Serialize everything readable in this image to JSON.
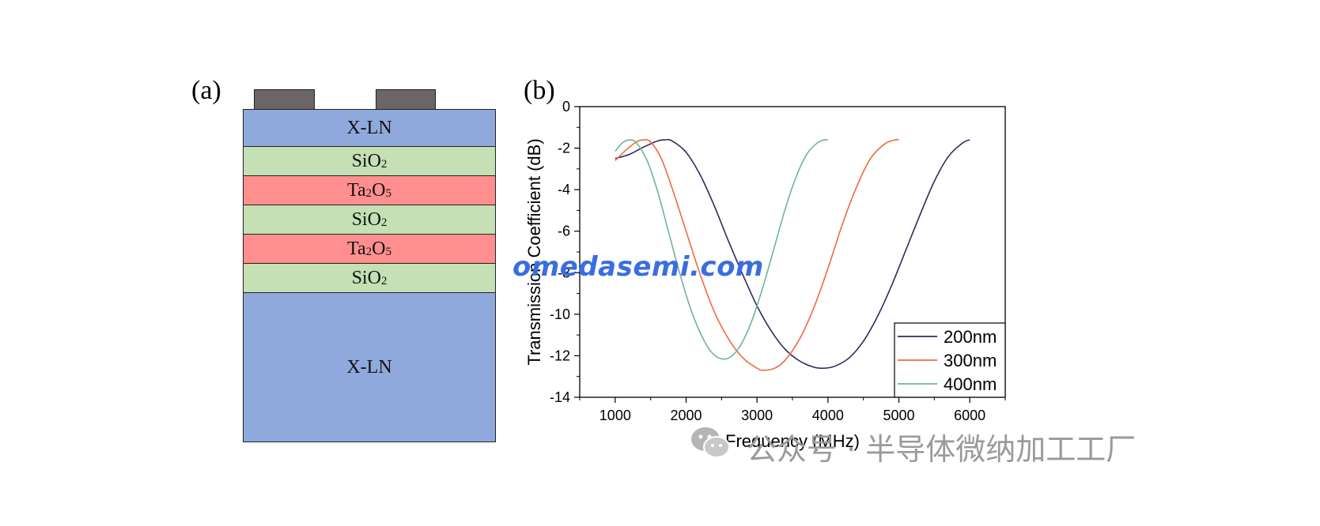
{
  "panel_a": {
    "label": "(a)",
    "layers": [
      {
        "name": "X-LN",
        "color": "#8fa9dc"
      },
      {
        "name": "SiO",
        "sub": "2",
        "color": "#c5e0b4"
      },
      {
        "name": "Ta",
        "sub": "2",
        "name2": "O",
        "sub2": "5",
        "color": "#ff8f8f"
      },
      {
        "name": "SiO",
        "sub": "2",
        "color": "#c5e0b4"
      },
      {
        "name": "Ta",
        "sub": "2",
        "name2": "O",
        "sub2": "5",
        "color": "#ff8f8f"
      },
      {
        "name": "SiO",
        "sub": "2",
        "color": "#c5e0b4"
      },
      {
        "name": "X-LN",
        "color": "#8fa9dc"
      }
    ]
  },
  "panel_b": {
    "label": "(b)"
  },
  "chart_data": {
    "type": "line",
    "xlabel": "Frequency (MHz)",
    "ylabel": "Transmission Coefficient (dB)",
    "xlim": [
      500,
      6500
    ],
    "ylim": [
      -14,
      0
    ],
    "xticks": [
      1000,
      2000,
      3000,
      4000,
      5000,
      6000
    ],
    "yticks": [
      0,
      -2,
      -4,
      -6,
      -8,
      -10,
      -12,
      -14
    ],
    "legend_position": "bottom-right",
    "series": [
      {
        "name": "200nm",
        "color": "#2c2c5c",
        "x": [
          1000,
          1200,
          1400,
          1600,
          1700,
          1800,
          2000,
          2200,
          2400,
          2600,
          2800,
          3000,
          3200,
          3400,
          3600,
          3800,
          3950,
          4100,
          4300,
          4500,
          4700,
          4900,
          5100,
          5300,
          5500,
          5700,
          5900,
          6000
        ],
        "y": [
          -2.5,
          -2.3,
          -1.95,
          -1.65,
          -1.6,
          -1.65,
          -2.2,
          -3.3,
          -4.8,
          -6.5,
          -8.1,
          -9.6,
          -10.8,
          -11.7,
          -12.25,
          -12.55,
          -12.6,
          -12.5,
          -12.1,
          -11.3,
          -10.1,
          -8.6,
          -6.9,
          -5.2,
          -3.6,
          -2.4,
          -1.75,
          -1.6
        ]
      },
      {
        "name": "300nm",
        "color": "#f06a3f",
        "x": [
          1000,
          1150,
          1300,
          1400,
          1500,
          1650,
          1800,
          2000,
          2200,
          2400,
          2600,
          2800,
          3000,
          3100,
          3250,
          3400,
          3600,
          3800,
          4000,
          4200,
          4400,
          4600,
          4800,
          4950,
          5000
        ],
        "y": [
          -2.6,
          -2.1,
          -1.7,
          -1.6,
          -1.7,
          -2.5,
          -3.9,
          -6.0,
          -8.1,
          -9.9,
          -11.2,
          -12.1,
          -12.6,
          -12.7,
          -12.6,
          -12.2,
          -11.2,
          -9.7,
          -7.8,
          -5.7,
          -3.9,
          -2.5,
          -1.8,
          -1.6,
          -1.6
        ]
      },
      {
        "name": "400nm",
        "color": "#6fb39a",
        "x": [
          1000,
          1100,
          1200,
          1300,
          1450,
          1600,
          1750,
          1900,
          2050,
          2200,
          2350,
          2500,
          2650,
          2800,
          2950,
          3100,
          3250,
          3400,
          3550,
          3700,
          3850,
          3950,
          4000
        ],
        "y": [
          -2.15,
          -1.75,
          -1.6,
          -1.75,
          -2.6,
          -4.1,
          -6.0,
          -7.9,
          -9.6,
          -10.9,
          -11.8,
          -12.15,
          -12.0,
          -11.3,
          -10.1,
          -8.5,
          -6.7,
          -4.9,
          -3.4,
          -2.3,
          -1.75,
          -1.6,
          -1.6
        ]
      }
    ]
  },
  "watermark_text": "omedasemi.com",
  "footer": {
    "icon": "wechat-icon",
    "text": "公众号 · 半导体微纳加工工厂"
  }
}
